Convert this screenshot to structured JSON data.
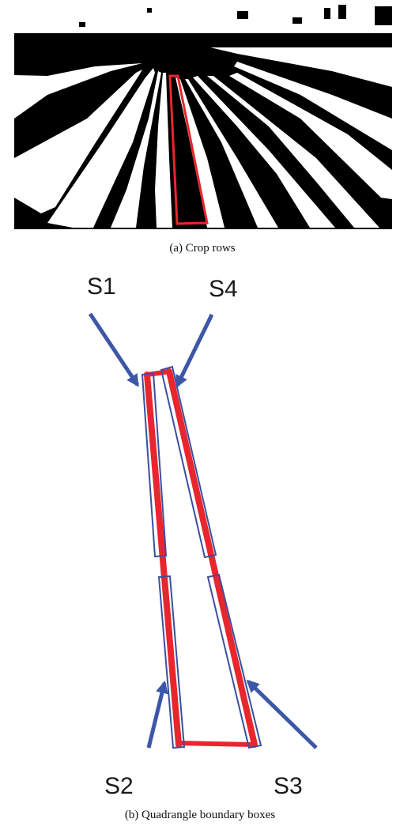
{
  "captions": {
    "a": "(a)  Crop rows",
    "b": "(b)  Quadrangle boundary boxes"
  },
  "segments": [
    {
      "id": "s1",
      "label": "S1"
    },
    {
      "id": "s2",
      "label": "S2"
    },
    {
      "id": "s3",
      "label": "S3"
    },
    {
      "id": "s4",
      "label": "S4"
    }
  ],
  "colors": {
    "field_background": "#000000",
    "crop_rows": "#ffffff",
    "highlight": "#e8262d",
    "box_outline": "#3b4fa0",
    "arrows": "#3c56a8"
  }
}
